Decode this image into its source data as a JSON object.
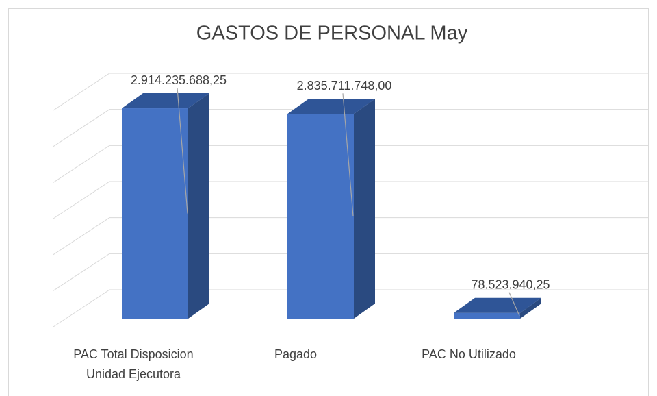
{
  "chart_data": {
    "type": "bar3d",
    "title": "GASTOS DE PERSONAL May",
    "categories": [
      [
        "PAC Total Disposicion",
        "Unidad Ejecutora"
      ],
      [
        "Pagado"
      ],
      [
        "PAC No Utilizado"
      ]
    ],
    "values": [
      2914235688.25,
      2835711748.0,
      78523940.25
    ],
    "value_labels": [
      "2.914.235.688,25",
      "2.835.711.748,00",
      "78.523.940,25"
    ],
    "color": "#4472c4",
    "ylim": [
      0,
      3000000000
    ],
    "yticks": [
      0,
      500000000,
      1000000000,
      1500000000,
      2000000000,
      2500000000,
      3000000000
    ],
    "grid": true
  }
}
